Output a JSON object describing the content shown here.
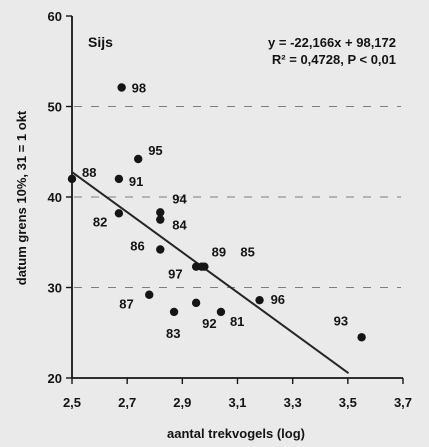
{
  "chart_data": {
    "type": "scatter",
    "title": "Sijs",
    "xlabel": "aantal trekvogels (log)",
    "ylabel": "datum grens 10%, 31 = 1 okt",
    "xlim": [
      2.5,
      3.7
    ],
    "ylim": [
      20,
      60
    ],
    "x_ticks": [
      2.5,
      2.7,
      2.9,
      3.1,
      3.3,
      3.5,
      3.7
    ],
    "x_tick_labels": [
      "2,5",
      "2,7",
      "2,9",
      "3,1",
      "3,3",
      "3,5",
      "3,7"
    ],
    "y_ticks": [
      20,
      30,
      40,
      50,
      60
    ],
    "y_tick_labels": [
      "20",
      "30",
      "40",
      "50",
      "60"
    ],
    "grid": {
      "horizontal": true,
      "style": "dashed",
      "y_values": [
        30,
        40,
        50
      ]
    },
    "equation": "y = -22,166x + 98,172",
    "stats": "R² = 0,4728, P < 0,01",
    "regression": {
      "slope": -22.166,
      "intercept": 98.172,
      "x_range": [
        2.5,
        3.5
      ]
    },
    "points": [
      {
        "label": "88",
        "x": 2.5,
        "y": 42
      },
      {
        "label": "82",
        "x": 2.67,
        "y": 38.2
      },
      {
        "label": "91",
        "x": 2.67,
        "y": 42
      },
      {
        "label": "95",
        "x": 2.74,
        "y": 44.2
      },
      {
        "label": "98",
        "x": 2.68,
        "y": 52.1
      },
      {
        "label": "94",
        "x": 2.82,
        "y": 38.3
      },
      {
        "label": "84",
        "x": 2.82,
        "y": 37.5
      },
      {
        "label": "86",
        "x": 2.82,
        "y": 34.2
      },
      {
        "label": "97",
        "x": 2.95,
        "y": 32.3
      },
      {
        "label": "89",
        "x": 2.97,
        "y": 32.3
      },
      {
        "label": "85",
        "x": 2.98,
        "y": 32.3
      },
      {
        "label": "87",
        "x": 2.78,
        "y": 29.2
      },
      {
        "label": "83",
        "x": 2.87,
        "y": 27.3
      },
      {
        "label": "92",
        "x": 2.95,
        "y": 28.3
      },
      {
        "label": "81",
        "x": 3.04,
        "y": 27.3
      },
      {
        "label": "96",
        "x": 3.18,
        "y": 28.6
      },
      {
        "label": "93",
        "x": 3.55,
        "y": 24.5
      }
    ]
  }
}
